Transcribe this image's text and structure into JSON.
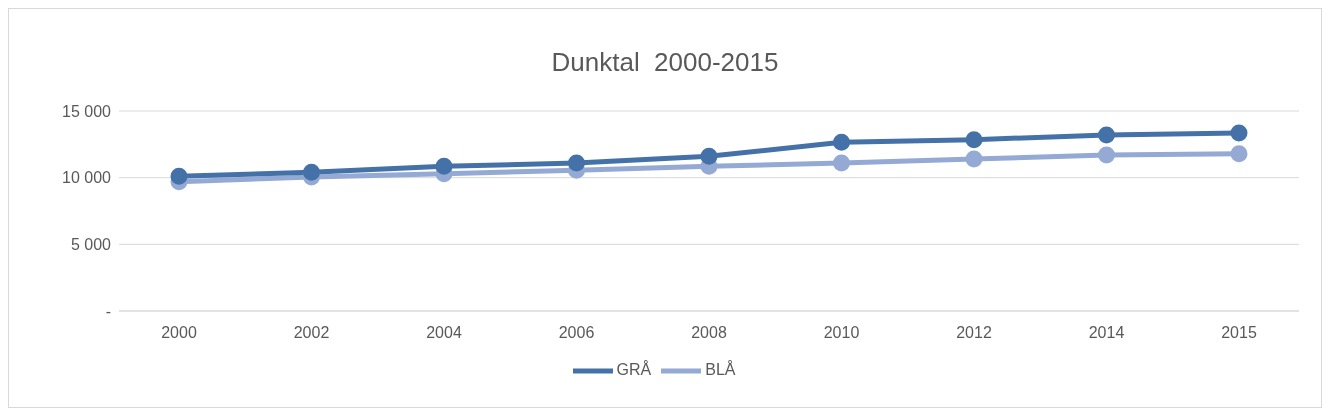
{
  "chart_data": {
    "type": "line",
    "title": "Dunktal  2000-2015",
    "categories": [
      "2000",
      "2002",
      "2004",
      "2006",
      "2008",
      "2010",
      "2012",
      "2014",
      "2015"
    ],
    "series": [
      {
        "name": "GRÅ",
        "color": "#4472a8",
        "values": [
          10100,
          10400,
          10850,
          11100,
          11600,
          12650,
          12850,
          13200,
          13350
        ]
      },
      {
        "name": "BLÅ",
        "color": "#94aad4",
        "values": [
          9700,
          10050,
          10300,
          10550,
          10850,
          11100,
          11400,
          11700,
          11800
        ]
      }
    ],
    "ylim": [
      0,
      15000
    ],
    "yticks": [
      {
        "value": 0,
        "label": "-"
      },
      {
        "value": 5000,
        "label": "5 000"
      },
      {
        "value": 10000,
        "label": "10 000"
      },
      {
        "value": 15000,
        "label": "15 000"
      }
    ],
    "grid": "y",
    "legend": "bottom",
    "marker": "circle",
    "line_style": "solid"
  }
}
